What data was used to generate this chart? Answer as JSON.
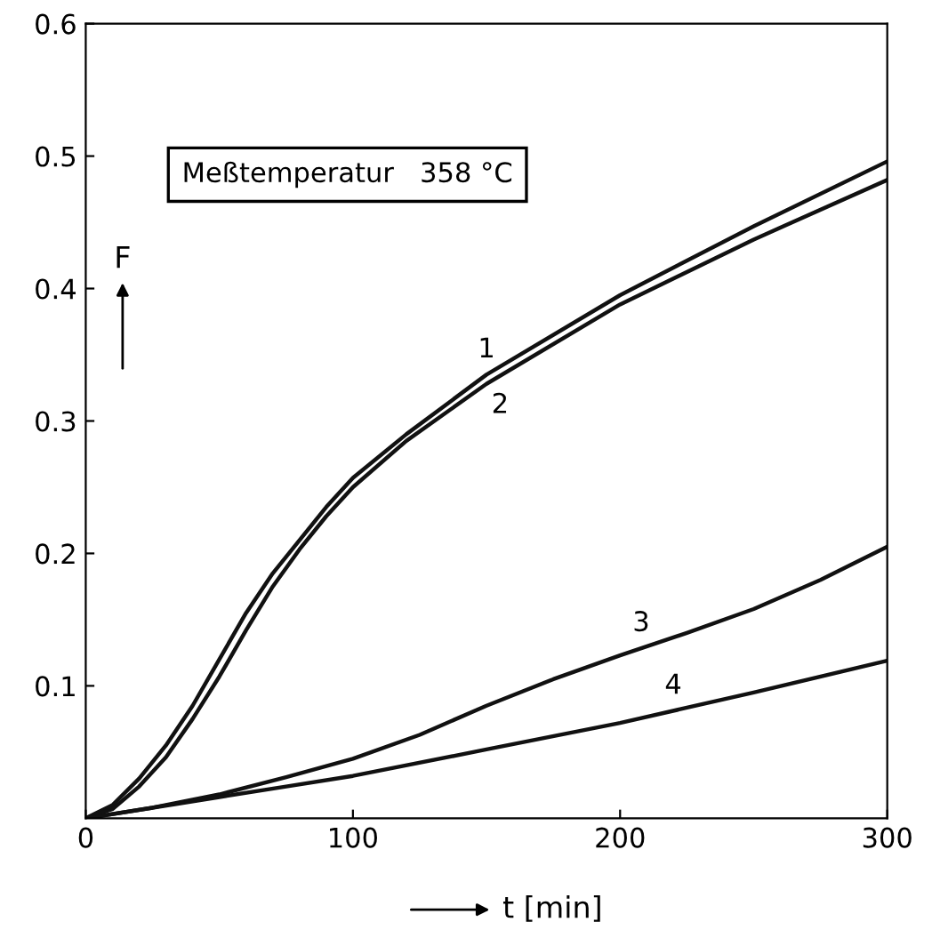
{
  "chart_data": {
    "type": "line",
    "xlabel": "t [min]",
    "ylabel": "F",
    "xlim": [
      0,
      300
    ],
    "ylim": [
      0,
      0.6
    ],
    "xticks": [
      0,
      100,
      200,
      300
    ],
    "yticks": [
      0.1,
      0.2,
      0.3,
      0.4,
      0.5,
      0.6
    ],
    "grid": false,
    "legend": false,
    "marker": "none",
    "line_style": "solid",
    "series": [
      {
        "name": "1",
        "color": "#111111",
        "x": [
          0,
          10,
          20,
          30,
          40,
          50,
          60,
          70,
          80,
          90,
          100,
          120,
          150,
          200,
          250,
          300
        ],
        "values": [
          0,
          0.01,
          0.03,
          0.055,
          0.085,
          0.12,
          0.155,
          0.185,
          0.21,
          0.235,
          0.257,
          0.29,
          0.335,
          0.395,
          0.447,
          0.496
        ]
      },
      {
        "name": "2",
        "color": "#111111",
        "x": [
          0,
          10,
          20,
          30,
          40,
          50,
          60,
          70,
          80,
          90,
          100,
          120,
          150,
          200,
          250,
          300
        ],
        "values": [
          0,
          0.007,
          0.024,
          0.046,
          0.075,
          0.107,
          0.142,
          0.175,
          0.203,
          0.228,
          0.25,
          0.285,
          0.328,
          0.388,
          0.437,
          0.482
        ]
      },
      {
        "name": "3",
        "color": "#111111",
        "x": [
          0,
          25,
          50,
          75,
          100,
          125,
          150,
          175,
          200,
          225,
          250,
          275,
          300
        ],
        "values": [
          0,
          0.008,
          0.018,
          0.031,
          0.045,
          0.063,
          0.085,
          0.105,
          0.123,
          0.14,
          0.158,
          0.18,
          0.205
        ]
      },
      {
        "name": "4",
        "color": "#111111",
        "x": [
          0,
          25,
          50,
          75,
          100,
          150,
          200,
          250,
          300
        ],
        "values": [
          0,
          0.008,
          0.016,
          0.024,
          0.032,
          0.052,
          0.072,
          0.095,
          0.119
        ]
      }
    ],
    "annotations": [
      "Meßtemperatur   358 °C"
    ]
  }
}
